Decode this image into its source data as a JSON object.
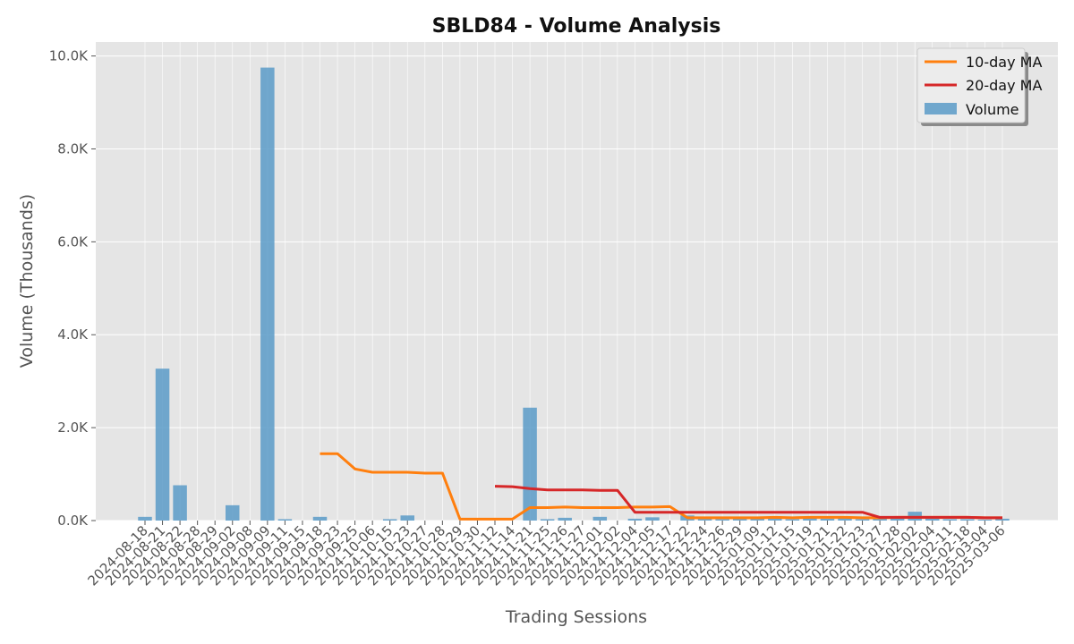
{
  "chart_data": {
    "type": "bar",
    "title": "SBLD84 - Volume Analysis",
    "xlabel": "Trading Sessions",
    "ylabel": "Volume (Thousands)",
    "ylim": [
      0,
      10300
    ],
    "yticks": [
      0,
      2000,
      4000,
      6000,
      8000,
      10000
    ],
    "ytick_labels": [
      "0.0K",
      "2.0K",
      "4.0K",
      "6.0K",
      "8.0K",
      "10.0K"
    ],
    "grid": true,
    "legend_position": "top-right",
    "categories": [
      "2024-08-18",
      "2024-08-21",
      "2024-08-22",
      "2024-08-28",
      "2024-08-29",
      "2024-09-02",
      "2024-09-08",
      "2024-09-09",
      "2024-09-11",
      "2024-09-15",
      "2024-09-18",
      "2024-09-23",
      "2024-09-25",
      "2024-10-06",
      "2024-10-15",
      "2024-10-23",
      "2024-10-27",
      "2024-10-28",
      "2024-10-29",
      "2024-10-30",
      "2024-11-12",
      "2024-11-14",
      "2024-11-21",
      "2024-11-25",
      "2024-11-26",
      "2024-11-27",
      "2024-12-01",
      "2024-12-02",
      "2024-12-04",
      "2024-12-05",
      "2024-12-17",
      "2024-12-22",
      "2024-12-24",
      "2024-12-26",
      "2024-12-29",
      "2025-01-09",
      "2025-01-12",
      "2025-01-15",
      "2025-01-19",
      "2025-01-21",
      "2025-01-22",
      "2025-01-23",
      "2025-01-27",
      "2025-01-28",
      "2025-02-02",
      "2025-02-04",
      "2025-02-11",
      "2025-02-18",
      "2025-03-04",
      "2025-03-06"
    ],
    "series": [
      {
        "name": "Volume",
        "kind": "bar",
        "color": "#5b9bc8",
        "values": [
          80,
          3270,
          760,
          0,
          0,
          330,
          0,
          9750,
          30,
          0,
          80,
          0,
          0,
          0,
          30,
          110,
          0,
          0,
          0,
          0,
          0,
          0,
          2430,
          30,
          60,
          0,
          80,
          0,
          40,
          70,
          0,
          110,
          50,
          30,
          40,
          50,
          40,
          30,
          50,
          40,
          50,
          30,
          60,
          70,
          190,
          40,
          30,
          30,
          20,
          40
        ]
      },
      {
        "name": "10-day MA",
        "kind": "line",
        "color": "#ff7f0e",
        "values": [
          null,
          null,
          null,
          null,
          null,
          null,
          null,
          null,
          null,
          null,
          1440,
          1440,
          1110,
          1040,
          1040,
          1040,
          1020,
          1020,
          30,
          30,
          30,
          30,
          280,
          280,
          290,
          280,
          280,
          280,
          290,
          290,
          300,
          60,
          60,
          60,
          60,
          60,
          70,
          60,
          70,
          70,
          70,
          60,
          60,
          70,
          70,
          70,
          70,
          70,
          60,
          60
        ]
      },
      {
        "name": "20-day MA",
        "kind": "line",
        "color": "#d62728",
        "values": [
          null,
          null,
          null,
          null,
          null,
          null,
          null,
          null,
          null,
          null,
          null,
          null,
          null,
          null,
          null,
          null,
          null,
          null,
          null,
          null,
          740,
          730,
          690,
          660,
          660,
          660,
          650,
          650,
          180,
          180,
          180,
          180,
          180,
          180,
          180,
          180,
          180,
          180,
          180,
          180,
          180,
          180,
          70,
          70,
          70,
          70,
          70,
          70,
          60,
          60
        ]
      }
    ]
  }
}
